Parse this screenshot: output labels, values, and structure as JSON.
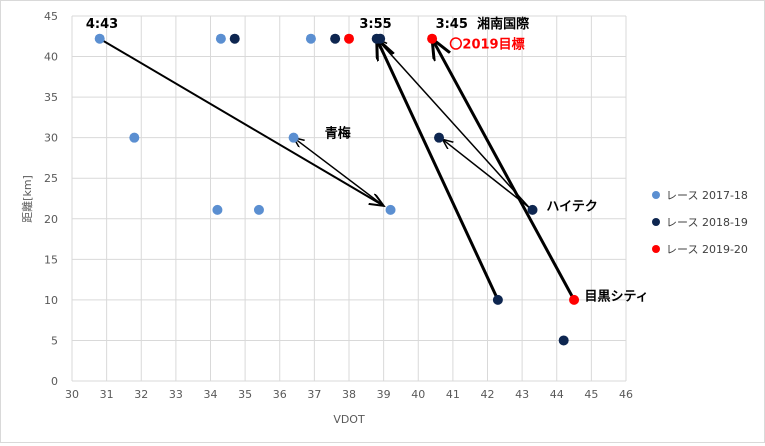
{
  "chart_data": {
    "type": "scatter",
    "xlabel": "VDOT",
    "ylabel": "距離[km]",
    "xlim": [
      30,
      46
    ],
    "ylim": [
      0,
      45
    ],
    "xticks": [
      "30",
      "31",
      "32",
      "33",
      "34",
      "35",
      "36",
      "37",
      "38",
      "39",
      "40",
      "41",
      "42",
      "43",
      "44",
      "45",
      "46"
    ],
    "yticks": [
      "0",
      "5",
      "10",
      "15",
      "20",
      "25",
      "30",
      "35",
      "40",
      "45"
    ],
    "grid": true,
    "legend_position": "right",
    "series": [
      {
        "name": "レース 2017-18",
        "color": "#5b8fd1",
        "points": [
          [
            30.8,
            42.2
          ],
          [
            31.8,
            30
          ],
          [
            34.2,
            21.1
          ],
          [
            34.3,
            42.2
          ],
          [
            35.4,
            21.1
          ],
          [
            36.4,
            30
          ],
          [
            36.9,
            42.2
          ],
          [
            39.2,
            21.1
          ]
        ]
      },
      {
        "name": "レース 2018-19",
        "color": "#0e2650",
        "points": [
          [
            34.7,
            42.2
          ],
          [
            37.6,
            42.2
          ],
          [
            38.8,
            42.2
          ],
          [
            38.9,
            42.2
          ],
          [
            40.6,
            30
          ],
          [
            42.3,
            10
          ],
          [
            43.3,
            21.1
          ],
          [
            44.2,
            5
          ]
        ]
      },
      {
        "name": "レース 2019-20",
        "color": "#ff0000",
        "points": [
          [
            38.0,
            42.2
          ],
          [
            40.4,
            42.2
          ],
          [
            44.5,
            10
          ]
        ]
      }
    ],
    "annotations": [
      {
        "text": "4:43",
        "x": 30.4,
        "y": 43.5,
        "color": "#000000"
      },
      {
        "text": "3:55",
        "x": 38.3,
        "y": 43.5,
        "color": "#000000"
      },
      {
        "text": "3:45",
        "x": 40.5,
        "y": 43.5,
        "color": "#000000"
      },
      {
        "text": "湘南国際",
        "x": 41.7,
        "y": 43.5,
        "color": "#000000"
      },
      {
        "text": "〇2019目標",
        "x": 40.9,
        "y": 41.0,
        "color": "#ff0000"
      },
      {
        "text": "青梅",
        "x": 37.3,
        "y": 30.0,
        "color": "#000000"
      },
      {
        "text": "ハイテク",
        "x": 43.7,
        "y": 21.0,
        "color": "#000000"
      },
      {
        "text": "目黒シティ",
        "x": 44.8,
        "y": 9.9,
        "color": "#000000"
      }
    ],
    "arrows": [
      {
        "from": [
          30.8,
          42.2
        ],
        "to": [
          39.0,
          21.6
        ],
        "width": 2
      },
      {
        "from": [
          39.0,
          21.6
        ],
        "to": [
          36.4,
          30.0
        ],
        "width": 1.5
      },
      {
        "from": [
          43.2,
          21.4
        ],
        "to": [
          38.8,
          42.2
        ],
        "width": 1.5
      },
      {
        "from": [
          43.2,
          21.4
        ],
        "to": [
          40.7,
          29.8
        ],
        "width": 1.5
      },
      {
        "from": [
          42.3,
          10.0
        ],
        "to": [
          38.8,
          42.2
        ],
        "width": 3
      },
      {
        "from": [
          44.5,
          10.0
        ],
        "to": [
          40.4,
          42.2
        ],
        "width": 3
      }
    ]
  }
}
